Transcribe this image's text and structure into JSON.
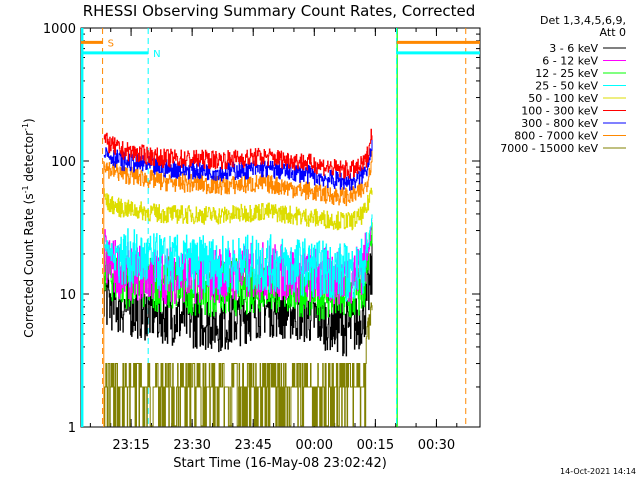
{
  "chart_data": {
    "type": "line",
    "title": "RHESSI Observing Summary Count Rates, Corrected",
    "xlabel": "Start Time (16-May-08 23:02:42)",
    "ylabel_main": "Corrected Count Rate (s",
    "ylabel_sup1": "-1",
    "ylabel_mid": " detector",
    "ylabel_sup2": "-1",
    "ylabel_end": ")",
    "y_scale": "log",
    "ylim": [
      1,
      1000
    ],
    "xlim_minutes": [
      0,
      98
    ],
    "x_ticks": [
      {
        "label": "23:15",
        "minute": 12.3
      },
      {
        "label": "23:30",
        "minute": 27.3
      },
      {
        "label": "23:45",
        "minute": 42.3
      },
      {
        "label": "00:00",
        "minute": 57.3
      },
      {
        "label": "00:15",
        "minute": 72.3
      },
      {
        "label": "00:30",
        "minute": 87.3
      }
    ],
    "y_ticks": [
      {
        "label": "1",
        "value": 1
      },
      {
        "label": "10",
        "value": 10
      },
      {
        "label": "100",
        "value": 100
      },
      {
        "label": "1000",
        "value": 1000
      }
    ],
    "legend_header": [
      "Det 1,3,4,5,6,9,",
      "Att 0"
    ],
    "legend_position": "right",
    "series": [
      {
        "name": "3 - 6 keV",
        "color": "#000000",
        "values": [
          [
            5.6,
            11
          ],
          [
            6.5,
            9
          ],
          [
            10,
            8
          ],
          [
            20,
            7
          ],
          [
            35,
            6
          ],
          [
            45,
            8
          ],
          [
            55,
            7
          ],
          [
            62,
            6
          ],
          [
            66,
            5.5
          ],
          [
            68,
            6
          ],
          [
            70,
            8
          ],
          [
            71.5,
            15
          ]
        ]
      },
      {
        "name": "6 - 12 keV",
        "color": "#ff00ff",
        "values": [
          [
            5.6,
            20
          ],
          [
            6.5,
            17
          ],
          [
            10,
            15
          ],
          [
            20,
            14
          ],
          [
            35,
            14
          ],
          [
            45,
            15
          ],
          [
            55,
            14
          ],
          [
            62,
            13.5
          ],
          [
            66,
            14
          ],
          [
            68,
            15
          ],
          [
            70,
            18
          ],
          [
            71.5,
            35
          ]
        ]
      },
      {
        "name": "12 - 25 keV",
        "color": "#00ff00",
        "values": [
          [
            5.6,
            18
          ],
          [
            6.5,
            15
          ],
          [
            10,
            13
          ],
          [
            20,
            12
          ],
          [
            35,
            11
          ],
          [
            45,
            12
          ],
          [
            55,
            11
          ],
          [
            62,
            10
          ],
          [
            66,
            9.5
          ],
          [
            68,
            10
          ],
          [
            70,
            13
          ],
          [
            71.5,
            30
          ]
        ]
      },
      {
        "name": "25 - 50 keV",
        "color": "#00ffff",
        "values": [
          [
            5.6,
            25
          ],
          [
            6.5,
            21
          ],
          [
            10,
            19
          ],
          [
            20,
            17
          ],
          [
            35,
            16.5
          ],
          [
            45,
            17
          ],
          [
            55,
            16
          ],
          [
            62,
            15
          ],
          [
            66,
            14.5
          ],
          [
            68,
            15
          ],
          [
            70,
            18
          ],
          [
            71.5,
            40
          ]
        ]
      },
      {
        "name": "50 - 100 keV",
        "color": "#dddd00",
        "values": [
          [
            5.6,
            55
          ],
          [
            6.5,
            48
          ],
          [
            10,
            44
          ],
          [
            20,
            40
          ],
          [
            35,
            39
          ],
          [
            45,
            42
          ],
          [
            55,
            38
          ],
          [
            62,
            36
          ],
          [
            66,
            35
          ],
          [
            68,
            37
          ],
          [
            70,
            42
          ],
          [
            71.5,
            65
          ]
        ]
      },
      {
        "name": "100 - 300 keV",
        "color": "#ff0000",
        "values": [
          [
            5.6,
            150
          ],
          [
            6.5,
            135
          ],
          [
            10,
            120
          ],
          [
            20,
            105
          ],
          [
            35,
            102
          ],
          [
            45,
            108
          ],
          [
            55,
            98
          ],
          [
            62,
            88
          ],
          [
            66,
            85
          ],
          [
            68,
            88
          ],
          [
            70,
            100
          ],
          [
            71.5,
            170
          ]
        ]
      },
      {
        "name": "300 - 800 keV",
        "color": "#0000ff",
        "values": [
          [
            5.6,
            125
          ],
          [
            6.5,
            112
          ],
          [
            10,
            100
          ],
          [
            20,
            88
          ],
          [
            35,
            83
          ],
          [
            45,
            88
          ],
          [
            55,
            80
          ],
          [
            62,
            72
          ],
          [
            66,
            70
          ],
          [
            68,
            73
          ],
          [
            70,
            85
          ],
          [
            71.5,
            140
          ]
        ]
      },
      {
        "name": "800 - 7000 keV",
        "color": "#ff8800",
        "values": [
          [
            5.6,
            100
          ],
          [
            6.5,
            88
          ],
          [
            10,
            80
          ],
          [
            20,
            70
          ],
          [
            35,
            65
          ],
          [
            45,
            68
          ],
          [
            55,
            60
          ],
          [
            62,
            55
          ],
          [
            66,
            54
          ],
          [
            68,
            57
          ],
          [
            70,
            65
          ],
          [
            71.5,
            110
          ]
        ]
      },
      {
        "name": "7000 - 15000 keV",
        "color": "#808000",
        "values": [
          [
            5.6,
            3
          ],
          [
            10,
            2
          ],
          [
            20,
            2
          ],
          [
            35,
            2.5
          ],
          [
            45,
            2.5
          ],
          [
            55,
            2
          ],
          [
            62,
            2
          ],
          [
            66,
            2
          ],
          [
            68,
            2.5
          ],
          [
            70,
            4
          ],
          [
            71.5,
            8
          ]
        ]
      }
    ],
    "attenuator_bar": {
      "label": "S",
      "color": "#ff8800",
      "x_start": 0,
      "x_end": 5.3,
      "x_resume": 77.5,
      "value": 780
    },
    "night_bar": {
      "label": "N",
      "color": "#00ffff",
      "x_start": 0,
      "x_end": 16.5,
      "x_resume": 77.5,
      "value": 650
    },
    "vertical_markers": [
      {
        "minute": 5.3,
        "color": "#ff8800"
      },
      {
        "minute": 16.5,
        "color": "#00ffff"
      },
      {
        "minute": 77.5,
        "color": "#00ffff"
      },
      {
        "minute": 94.5,
        "color": "#ff8800"
      }
    ],
    "saa_spans": [
      {
        "start": 0,
        "end": 0.6,
        "color": "#00ffff"
      },
      {
        "start": 77.5,
        "end": 77.8,
        "color": "#00ff00"
      }
    ],
    "grid": false
  },
  "timestamp": "14-Oct-2021 14:14"
}
